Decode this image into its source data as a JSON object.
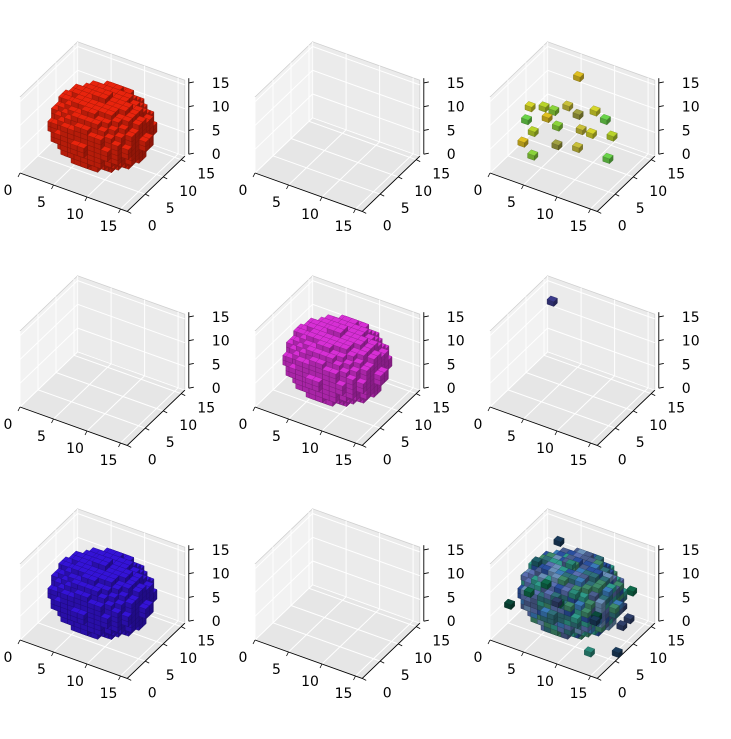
{
  "chart_data": [
    {
      "type": "voxel",
      "color": "#e8240d",
      "content": "sphere",
      "x_ticks": [
        "0",
        "5",
        "10",
        "15"
      ],
      "y_ticks": [
        "0",
        "5",
        "10",
        "15"
      ],
      "z_ticks": [
        "0",
        "5",
        "10",
        "15"
      ]
    },
    {
      "type": "voxel",
      "color": "",
      "content": "empty",
      "x_ticks": [
        "0",
        "5",
        "10",
        "15"
      ],
      "y_ticks": [
        "0",
        "5",
        "10",
        "15"
      ],
      "z_ticks": [
        "0",
        "5",
        "10",
        "15"
      ]
    },
    {
      "type": "voxel",
      "color": "#b8d42a",
      "content": "sparse",
      "x_ticks": [
        "0",
        "5",
        "10",
        "15"
      ],
      "y_ticks": [
        "0",
        "5",
        "10",
        "15"
      ],
      "z_ticks": [
        "0",
        "5",
        "10",
        "15"
      ]
    },
    {
      "type": "voxel",
      "color": "",
      "content": "empty",
      "x_ticks": [
        "0",
        "5",
        "10",
        "15"
      ],
      "y_ticks": [
        "0",
        "5",
        "10",
        "15"
      ],
      "z_ticks": [
        "0",
        "5",
        "10",
        "15"
      ]
    },
    {
      "type": "voxel",
      "color": "#d72fd5",
      "content": "sphere",
      "x_ticks": [
        "0",
        "5",
        "10",
        "15"
      ],
      "y_ticks": [
        "0",
        "5",
        "10",
        "15"
      ],
      "z_ticks": [
        "0",
        "5",
        "10",
        "15"
      ]
    },
    {
      "type": "voxel",
      "color": "#3a3a8a",
      "content": "single",
      "x_ticks": [
        "0",
        "5",
        "10",
        "15"
      ],
      "y_ticks": [
        "0",
        "5",
        "10",
        "15"
      ],
      "z_ticks": [
        "0",
        "5",
        "10",
        "15"
      ]
    },
    {
      "type": "voxel",
      "color": "#3413d6",
      "content": "sphere",
      "x_ticks": [
        "0",
        "5",
        "10",
        "15"
      ],
      "y_ticks": [
        "0",
        "5",
        "10",
        "15"
      ],
      "z_ticks": [
        "0",
        "5",
        "10",
        "15"
      ]
    },
    {
      "type": "voxel",
      "color": "",
      "content": "empty",
      "x_ticks": [
        "0",
        "5",
        "10",
        "15"
      ],
      "y_ticks": [
        "0",
        "5",
        "10",
        "15"
      ],
      "z_ticks": [
        "0",
        "5",
        "10",
        "15"
      ]
    },
    {
      "type": "voxel",
      "color": "#2f6f7a",
      "content": "sphere-noisy",
      "x_ticks": [
        "0",
        "5",
        "10",
        "15"
      ],
      "y_ticks": [
        "0",
        "5",
        "10",
        "15"
      ],
      "z_ticks": [
        "0",
        "5",
        "10",
        "15"
      ]
    }
  ]
}
